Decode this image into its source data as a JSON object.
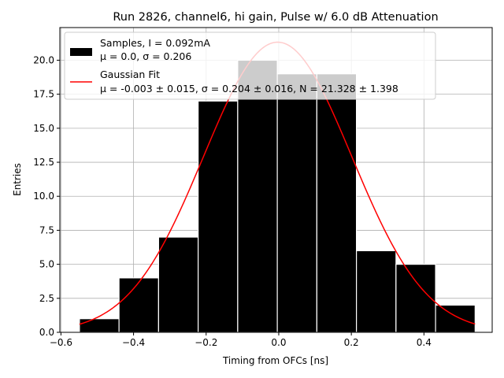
{
  "chart_data": {
    "type": "bar",
    "title": "Run 2826, channel6, hi gain, Pulse w/ 6.0 dB Attenuation",
    "xlabel": "Timing from OFCs [ns]",
    "ylabel": "Entries",
    "xlim": [
      -0.603,
      0.588
    ],
    "ylim": [
      0,
      22.4
    ],
    "grid": true,
    "legend_position": "upper-left",
    "x_ticks": [
      -0.6,
      -0.4,
      -0.2,
      0.0,
      0.2,
      0.4
    ],
    "x_tick_labels": [
      "−0.6",
      "−0.4",
      "−0.2",
      "0.0",
      "0.2",
      "0.4"
    ],
    "y_ticks": [
      0,
      2.5,
      5,
      7.5,
      10,
      12.5,
      15,
      17.5,
      20
    ],
    "y_tick_labels": [
      "0.0",
      "2.5",
      "5.0",
      "7.5",
      "10.0",
      "12.5",
      "15.0",
      "17.5",
      "20.0"
    ],
    "histogram": {
      "name": "Samples",
      "bin_edges": [
        -0.549,
        -0.44,
        -0.331,
        -0.222,
        -0.113,
        -0.004,
        0.105,
        0.214,
        0.323,
        0.432,
        0.541
      ],
      "counts": [
        1,
        4,
        7,
        17,
        20,
        19,
        19,
        6,
        5,
        2
      ],
      "color": "#000000",
      "edge_color": "#ffffff"
    },
    "fit": {
      "name": "Gaussian Fit",
      "mu": -0.003,
      "sigma": 0.204,
      "N": 21.328,
      "x_range": [
        -0.549,
        0.541
      ],
      "color": "#ff0000"
    },
    "legend": [
      {
        "label_line1": "Samples, I = 0.092mA",
        "label_line2": "μ = 0.0, σ = 0.206",
        "kind": "patch",
        "color": "#000000"
      },
      {
        "label_line1": "Gaussian Fit",
        "label_line2": "μ = -0.003 ± 0.015, σ = 0.204 ± 0.016, N = 21.328 ± 1.398",
        "kind": "line",
        "color": "#ff0000"
      }
    ]
  }
}
